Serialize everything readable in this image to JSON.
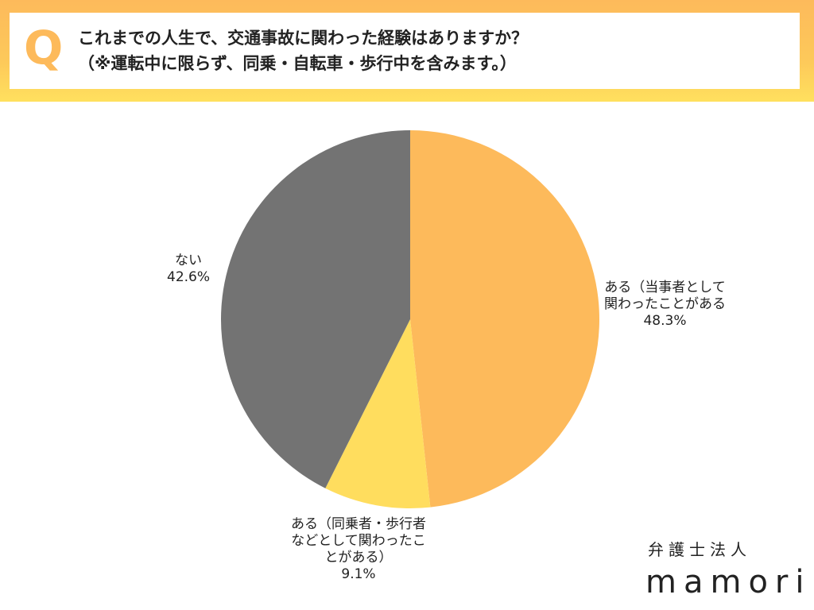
{
  "header": {
    "q": "Q",
    "line1": "これまでの人生で、交通事故に関わった経験はありますか？",
    "line2": "（※運転中に限らず、同乗・自転車・歩行中を含みます。）"
  },
  "logo": {
    "line1": "弁護士法人",
    "line2": "mamori"
  },
  "chart_data": {
    "type": "pie",
    "title": "",
    "start": "top",
    "direction": "clockwise",
    "slices": [
      {
        "label_lines": [
          "ある（当事者として",
          "関わったことがある"
        ],
        "value": 48.3,
        "value_label": "48.3%",
        "color": "#FDBA5B"
      },
      {
        "label_lines": [
          "ある（同乗者・歩行者",
          "などとして関わったこ",
          "とがある）"
        ],
        "value": 9.1,
        "value_label": "9.1%",
        "color": "#FFDD5E"
      },
      {
        "label_lines": [
          "ない"
        ],
        "value": 42.6,
        "value_label": "42.6%",
        "color": "#737373"
      }
    ]
  }
}
